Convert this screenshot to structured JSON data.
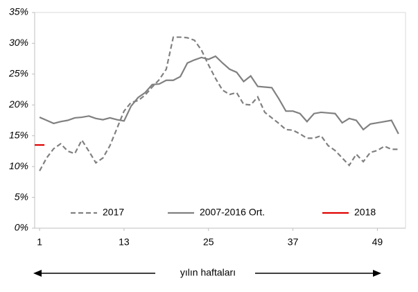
{
  "chart_data": {
    "type": "line",
    "x": [
      1,
      2,
      3,
      4,
      5,
      6,
      7,
      8,
      9,
      10,
      11,
      12,
      13,
      14,
      15,
      16,
      17,
      18,
      19,
      20,
      21,
      22,
      23,
      24,
      25,
      26,
      27,
      28,
      29,
      30,
      31,
      32,
      33,
      34,
      35,
      36,
      37,
      38,
      39,
      40,
      41,
      42,
      43,
      44,
      45,
      46,
      47,
      48,
      49,
      50,
      51,
      52
    ],
    "series": [
      {
        "name": "2017",
        "color": "#808080",
        "dash": true,
        "values": [
          9.3,
          11.4,
          12.9,
          13.7,
          12.5,
          12.1,
          14.3,
          12.5,
          10.6,
          11.4,
          13.4,
          16.2,
          19.0,
          20.4,
          20.7,
          21.6,
          22.9,
          24.1,
          25.8,
          31.0,
          31.0,
          30.9,
          30.5,
          28.9,
          26.5,
          24.3,
          22.4,
          21.7,
          22.0,
          20.1,
          20.0,
          21.3,
          18.8,
          17.9,
          17.0,
          16.0,
          15.9,
          15.3,
          14.6,
          14.6,
          15.0,
          13.4,
          12.6,
          11.4,
          10.2,
          12.0,
          10.8,
          12.3,
          12.6,
          13.3,
          12.8,
          12.8
        ]
      },
      {
        "name": "2007-2016 Ort.",
        "color": "#808080",
        "dash": false,
        "values": [
          18.0,
          17.5,
          17.0,
          17.3,
          17.5,
          17.9,
          18.0,
          18.2,
          17.8,
          17.6,
          17.9,
          17.6,
          17.4,
          19.8,
          21.2,
          22.0,
          23.3,
          23.4,
          24.0,
          24.0,
          24.6,
          26.8,
          27.3,
          27.7,
          27.4,
          27.9,
          26.8,
          25.8,
          25.3,
          23.8,
          24.7,
          23.0,
          22.9,
          22.8,
          21.0,
          19.0,
          19.0,
          18.6,
          17.3,
          18.6,
          18.8,
          18.7,
          18.6,
          17.1,
          17.8,
          17.5,
          16.0,
          16.9,
          17.1,
          17.3,
          17.5,
          15.3
        ]
      },
      {
        "name": "2018",
        "color": "#e00000",
        "dash": false,
        "values": [
          13.5,
          null,
          null,
          null,
          null,
          null,
          null,
          null,
          null,
          null,
          null,
          null,
          null,
          null,
          null,
          null,
          null,
          null,
          null,
          null,
          null,
          null,
          null,
          null,
          null,
          null,
          null,
          null,
          null,
          null,
          null,
          null,
          null,
          null,
          null,
          null,
          null,
          null,
          null,
          null,
          null,
          null,
          null,
          null,
          null,
          null,
          null,
          null,
          null,
          null,
          null,
          null
        ]
      }
    ],
    "xlim": [
      0.3,
      53
    ],
    "xticks": [
      1,
      13,
      25,
      37,
      49
    ],
    "ylim": [
      0,
      35
    ],
    "yticks": [
      {
        "value": 0,
        "label": "0%"
      },
      {
        "value": 5,
        "label": "5%"
      },
      {
        "value": 10,
        "label": "10%"
      },
      {
        "value": 15,
        "label": "15%"
      },
      {
        "value": 20,
        "label": "20%"
      },
      {
        "value": 25,
        "label": "25%"
      },
      {
        "value": 30,
        "label": "30%"
      },
      {
        "value": 35,
        "label": "35%"
      }
    ],
    "grid": false,
    "legend": "bottom",
    "annotation": "yılın haftaları"
  }
}
